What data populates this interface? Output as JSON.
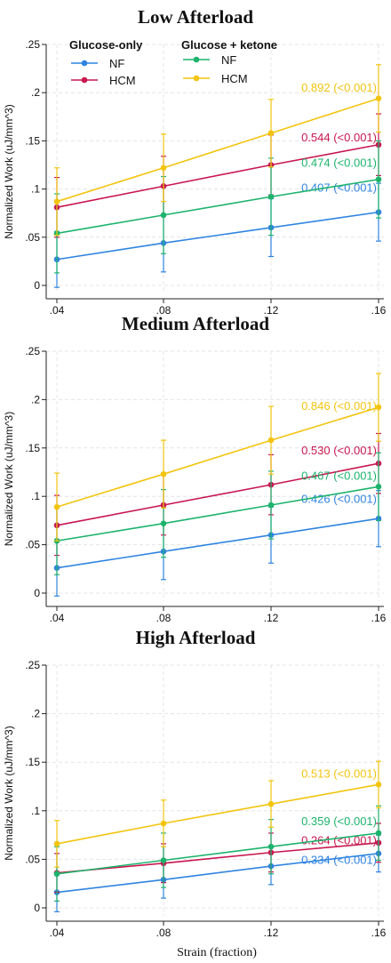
{
  "colors": {
    "gluc_nf": "#2f84e0",
    "gluc_hcm": "#c8174f",
    "ket_nf": "#1db36c",
    "ket_hcm": "#f2c40f",
    "grid": "#e4e4e4",
    "axis": "#222222"
  },
  "legend": {
    "group1": "Glucose-only",
    "group2": "Glucose + ketone",
    "nf": "NF",
    "hcm": "HCM"
  },
  "chart_data": [
    {
      "type": "line",
      "title": "Low Afterload",
      "ylabel": "Normalized Work (uJ/mm^3)",
      "xlabel": "",
      "x": [
        0.04,
        0.08,
        0.12,
        0.16
      ],
      "x_tick_labels": [
        ".04",
        ".08",
        ".12",
        ".16"
      ],
      "ylim": [
        0,
        0.25
      ],
      "y_ticks": [
        0,
        0.05,
        0.1,
        0.15,
        0.2,
        0.25
      ],
      "y_tick_labels": [
        "0",
        ".05",
        ".1",
        ".15",
        ".2",
        ".25"
      ],
      "grid": true,
      "legend_position": "top-left",
      "series": [
        {
          "group": "Glucose-only",
          "name": "NF",
          "color_key": "gluc_nf",
          "values": [
            0.027,
            0.044,
            0.06,
            0.076
          ],
          "err": [
            0.029,
            0.03,
            0.03,
            0.03
          ],
          "label": "0.407 (<0.001)",
          "label_y": 0.101
        },
        {
          "group": "Glucose-only",
          "name": "HCM",
          "color_key": "gluc_hcm",
          "values": [
            0.081,
            0.103,
            0.125,
            0.146
          ],
          "err": [
            0.031,
            0.031,
            0.031,
            0.032
          ],
          "label": "0.544 (<0.001)",
          "label_y": 0.153
        },
        {
          "group": "Glucose + ketone",
          "name": "NF",
          "color_key": "ket_nf",
          "values": [
            0.054,
            0.073,
            0.092,
            0.11
          ],
          "err": [
            0.041,
            0.04,
            0.04,
            0.04
          ],
          "label": "0.474 (<0.001)",
          "label_y": 0.127
        },
        {
          "group": "Glucose + ketone",
          "name": "HCM",
          "color_key": "ket_hcm",
          "values": [
            0.087,
            0.122,
            0.158,
            0.194
          ],
          "err": [
            0.035,
            0.035,
            0.035,
            0.035
          ],
          "label": "0.892 (<0.001)",
          "label_y": 0.205
        }
      ]
    },
    {
      "type": "line",
      "title": "Medium Afterload",
      "ylabel": "Normalized Work (uJ/mm^3)",
      "xlabel": "",
      "x": [
        0.04,
        0.08,
        0.12,
        0.16
      ],
      "x_tick_labels": [
        ".04",
        ".08",
        ".12",
        ".16"
      ],
      "ylim": [
        0,
        0.25
      ],
      "y_ticks": [
        0,
        0.05,
        0.1,
        0.15,
        0.2,
        0.25
      ],
      "y_tick_labels": [
        "0",
        ".05",
        ".1",
        ".15",
        ".2",
        ".25"
      ],
      "grid": true,
      "legend_position": "none",
      "series": [
        {
          "group": "Glucose-only",
          "name": "NF",
          "color_key": "gluc_nf",
          "values": [
            0.026,
            0.043,
            0.06,
            0.077
          ],
          "err": [
            0.029,
            0.029,
            0.029,
            0.029
          ],
          "label": "0.426 (<0.001)",
          "label_y": 0.097
        },
        {
          "group": "Glucose-only",
          "name": "HCM",
          "color_key": "gluc_hcm",
          "values": [
            0.07,
            0.091,
            0.112,
            0.134
          ],
          "err": [
            0.031,
            0.031,
            0.031,
            0.031
          ],
          "label": "0.530 (<0.001)",
          "label_y": 0.147
        },
        {
          "group": "Glucose + ketone",
          "name": "NF",
          "color_key": "ket_nf",
          "values": [
            0.054,
            0.072,
            0.091,
            0.11
          ],
          "err": [
            0.035,
            0.035,
            0.035,
            0.035
          ],
          "label": "0.467 (<0.001)",
          "label_y": 0.121
        },
        {
          "group": "Glucose + ketone",
          "name": "HCM",
          "color_key": "ket_hcm",
          "values": [
            0.089,
            0.123,
            0.158,
            0.192
          ],
          "err": [
            0.035,
            0.035,
            0.035,
            0.035
          ],
          "label": "0.846 (<0.001)",
          "label_y": 0.193
        }
      ]
    },
    {
      "type": "line",
      "title": "High Afterload",
      "ylabel": "Normalized Work (uJ/mm^3)",
      "xlabel": "Strain (fraction)",
      "x": [
        0.04,
        0.08,
        0.12,
        0.16
      ],
      "x_tick_labels": [
        ".04",
        ".08",
        ".12",
        ".16"
      ],
      "ylim": [
        0,
        0.25
      ],
      "y_ticks": [
        0,
        0.05,
        0.1,
        0.15,
        0.2,
        0.25
      ],
      "y_tick_labels": [
        "0",
        ".05",
        ".1",
        ".15",
        ".2",
        ".25"
      ],
      "grid": true,
      "legend_position": "none",
      "series": [
        {
          "group": "Glucose-only",
          "name": "NF",
          "color_key": "gluc_nf",
          "values": [
            0.016,
            0.029,
            0.043,
            0.056
          ],
          "err": [
            0.02,
            0.019,
            0.019,
            0.019
          ],
          "label": "0.334 (<0.001)",
          "label_y": 0.049
        },
        {
          "group": "Glucose-only",
          "name": "HCM",
          "color_key": "gluc_hcm",
          "values": [
            0.036,
            0.046,
            0.057,
            0.067
          ],
          "err": [
            0.02,
            0.02,
            0.02,
            0.02
          ],
          "label": "0.264 (<0.001)",
          "label_y": 0.069
        },
        {
          "group": "Glucose + ketone",
          "name": "NF",
          "color_key": "ket_nf",
          "values": [
            0.035,
            0.049,
            0.063,
            0.077
          ],
          "err": [
            0.028,
            0.028,
            0.028,
            0.028
          ],
          "label": "0.359 (<0.001)",
          "label_y": 0.089
        },
        {
          "group": "Glucose + ketone",
          "name": "HCM",
          "color_key": "ket_hcm",
          "values": [
            0.066,
            0.087,
            0.107,
            0.127
          ],
          "err": [
            0.024,
            0.024,
            0.024,
            0.024
          ],
          "label": "0.513 (<0.001)",
          "label_y": 0.138
        }
      ]
    }
  ]
}
